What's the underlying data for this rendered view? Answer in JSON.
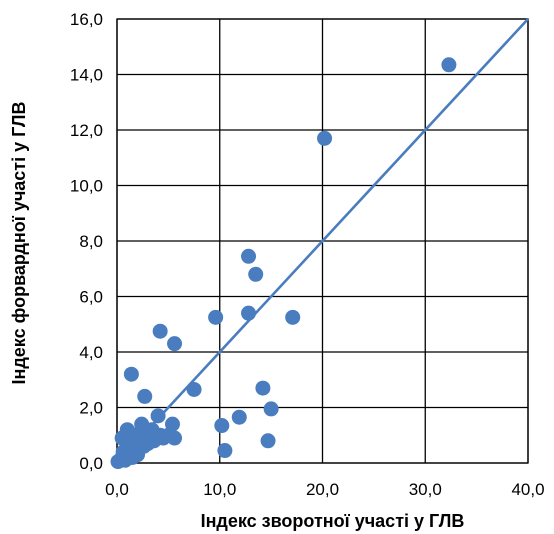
{
  "chart_data": {
    "type": "scatter",
    "xlabel": "Індекс зворотної участі у ГЛВ",
    "ylabel": "Індекс форвардної участі у ГЛВ",
    "xlim": [
      0,
      40
    ],
    "ylim": [
      0,
      16
    ],
    "x_ticks": [
      0,
      10,
      20,
      30,
      40
    ],
    "y_ticks": [
      0,
      2,
      4,
      6,
      8,
      10,
      12,
      14,
      16
    ],
    "x_tick_labels": [
      "0,0",
      "10,0",
      "20,0",
      "30,0",
      "40,0"
    ],
    "y_tick_labels": [
      "0,0",
      "2,0",
      "4,0",
      "6,0",
      "8,0",
      "10,0",
      "12,0",
      "14,0",
      "16,0"
    ],
    "grid": true,
    "marker_color": "#4A7DBF",
    "trendline": {
      "color": "#4A7DBF",
      "x": [
        0,
        40
      ],
      "y": [
        0,
        16
      ]
    },
    "points": [
      {
        "x": 0.1,
        "y": 0.05
      },
      {
        "x": 0.3,
        "y": 0.1
      },
      {
        "x": 0.5,
        "y": 0.2
      },
      {
        "x": 0.6,
        "y": 0.4
      },
      {
        "x": 0.8,
        "y": 0.1
      },
      {
        "x": 1.0,
        "y": 0.3
      },
      {
        "x": 1.2,
        "y": 0.6
      },
      {
        "x": 1.3,
        "y": 0.9
      },
      {
        "x": 1.5,
        "y": 0.2
      },
      {
        "x": 1.7,
        "y": 1.0
      },
      {
        "x": 1.8,
        "y": 0.5
      },
      {
        "x": 2.0,
        "y": 0.3
      },
      {
        "x": 2.1,
        "y": 0.8
      },
      {
        "x": 2.3,
        "y": 1.1
      },
      {
        "x": 2.4,
        "y": 1.4
      },
      {
        "x": 2.6,
        "y": 0.6
      },
      {
        "x": 2.8,
        "y": 0.9
      },
      {
        "x": 3.0,
        "y": 0.7
      },
      {
        "x": 3.2,
        "y": 1.0
      },
      {
        "x": 3.4,
        "y": 1.2
      },
      {
        "x": 3.6,
        "y": 0.8
      },
      {
        "x": 3.8,
        "y": 0.9
      },
      {
        "x": 4.0,
        "y": 1.7
      },
      {
        "x": 4.2,
        "y": 1.0
      },
      {
        "x": 4.5,
        "y": 0.9
      },
      {
        "x": 5.0,
        "y": 1.0
      },
      {
        "x": 5.4,
        "y": 1.4
      },
      {
        "x": 5.6,
        "y": 0.9
      },
      {
        "x": 0.5,
        "y": 0.9
      },
      {
        "x": 1.0,
        "y": 1.2
      },
      {
        "x": 1.4,
        "y": 3.2
      },
      {
        "x": 2.7,
        "y": 2.4
      },
      {
        "x": 4.2,
        "y": 4.75
      },
      {
        "x": 5.6,
        "y": 4.3
      },
      {
        "x": 7.5,
        "y": 2.65
      },
      {
        "x": 9.6,
        "y": 5.25
      },
      {
        "x": 10.2,
        "y": 1.35
      },
      {
        "x": 10.5,
        "y": 0.45
      },
      {
        "x": 11.9,
        "y": 1.65
      },
      {
        "x": 12.8,
        "y": 5.4
      },
      {
        "x": 12.8,
        "y": 7.45
      },
      {
        "x": 13.5,
        "y": 6.8
      },
      {
        "x": 14.2,
        "y": 2.7
      },
      {
        "x": 14.7,
        "y": 0.8
      },
      {
        "x": 15.0,
        "y": 1.95
      },
      {
        "x": 17.1,
        "y": 5.25
      },
      {
        "x": 20.2,
        "y": 11.7
      },
      {
        "x": 32.3,
        "y": 14.35
      }
    ]
  }
}
